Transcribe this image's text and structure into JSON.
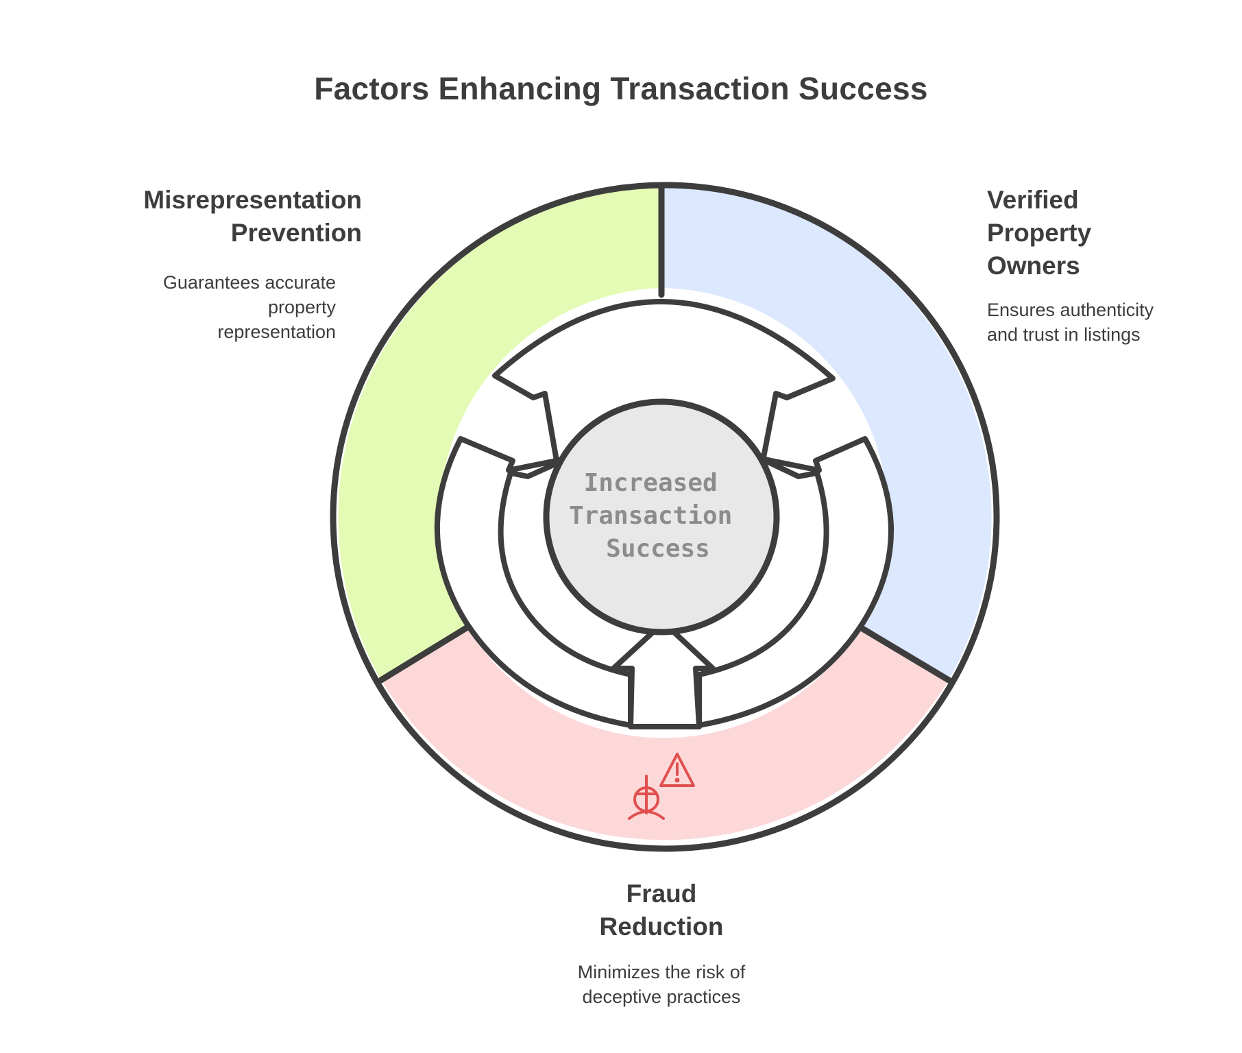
{
  "title": "Factors Enhancing Transaction Success",
  "center": {
    "lines": [
      "Increased",
      "Transaction",
      "Success"
    ]
  },
  "segments": [
    {
      "id": "misrepresentation",
      "title_lines": [
        "Misrepresentation",
        "Prevention"
      ],
      "description_lines": [
        "Guarantees accurate",
        "property",
        "representation"
      ],
      "fill_color": "#e3fbb5"
    },
    {
      "id": "verified",
      "title_lines": [
        "Verified",
        "Property",
        "Owners"
      ],
      "description_lines": [
        "Ensures authenticity",
        "and trust in listings"
      ],
      "fill_color": "#dce8fd"
    },
    {
      "id": "fraud",
      "title_lines": [
        "Fraud",
        "Reduction"
      ],
      "description_lines": [
        "Minimizes the risk of",
        "deceptive practices"
      ],
      "fill_color": "#fdd8d8",
      "icon": "fraud-alert-icon"
    }
  ],
  "colors": {
    "outline": "#3d3d3d",
    "center_fill": "#e8e8e8",
    "center_text": "#8c8c8c",
    "icon": "#e05050"
  }
}
